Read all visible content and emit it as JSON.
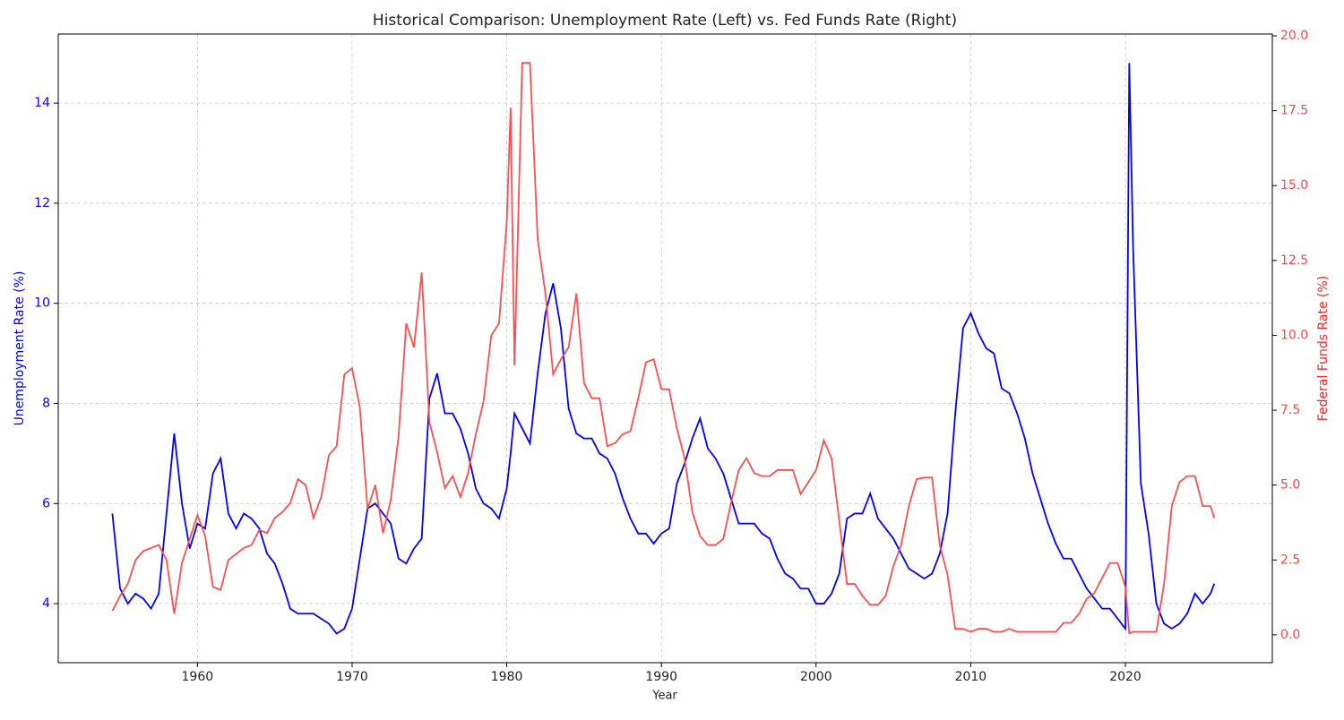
{
  "chart_data": {
    "type": "line",
    "title": "Historical Comparison: Unemployment Rate (Left) vs. Fed Funds Rate (Right)",
    "x_label": "Year",
    "y_label": "Unemployment Rate (%)",
    "y2_label": "Federal Funds Rate (%)",
    "x": [
      1954.5,
      1955.0,
      1955.5,
      1956.0,
      1956.5,
      1957.0,
      1957.5,
      1958.0,
      1958.5,
      1959.0,
      1959.5,
      1960.0,
      1960.5,
      1961.0,
      1961.5,
      1962.0,
      1962.5,
      1963.0,
      1963.5,
      1964.0,
      1964.5,
      1965.0,
      1965.5,
      1966.0,
      1966.5,
      1967.0,
      1967.5,
      1968.0,
      1968.5,
      1969.0,
      1969.5,
      1970.0,
      1970.5,
      1971.0,
      1971.5,
      1972.0,
      1972.5,
      1973.0,
      1973.5,
      1974.0,
      1974.5,
      1975.0,
      1975.5,
      1976.0,
      1976.5,
      1977.0,
      1977.5,
      1978.0,
      1978.5,
      1979.0,
      1979.5,
      1980.0,
      1980.25,
      1980.5,
      1981.0,
      1981.5,
      1982.0,
      1982.5,
      1983.0,
      1983.5,
      1984.0,
      1984.5,
      1985.0,
      1985.5,
      1986.0,
      1986.5,
      1987.0,
      1987.5,
      1988.0,
      1988.5,
      1989.0,
      1989.5,
      1990.0,
      1990.5,
      1991.0,
      1991.5,
      1992.0,
      1992.5,
      1993.0,
      1993.5,
      1994.0,
      1994.5,
      1995.0,
      1995.5,
      1996.0,
      1996.5,
      1997.0,
      1997.5,
      1998.0,
      1998.5,
      1999.0,
      1999.5,
      2000.0,
      2000.5,
      2001.0,
      2001.5,
      2002.0,
      2002.5,
      2003.0,
      2003.5,
      2004.0,
      2004.5,
      2005.0,
      2005.5,
      2006.0,
      2006.5,
      2007.0,
      2007.5,
      2008.0,
      2008.5,
      2009.0,
      2009.5,
      2010.0,
      2010.5,
      2011.0,
      2011.5,
      2012.0,
      2012.5,
      2013.0,
      2013.5,
      2014.0,
      2014.5,
      2015.0,
      2015.5,
      2016.0,
      2016.5,
      2017.0,
      2017.5,
      2018.0,
      2018.5,
      2019.0,
      2019.5,
      2020.0,
      2020.25,
      2020.5,
      2021.0,
      2021.5,
      2022.0,
      2022.5,
      2023.0,
      2023.5,
      2024.0,
      2024.5,
      2025.0,
      2025.5,
      2025.75
    ],
    "series": [
      {
        "name": "Unemployment Rate (%)",
        "color": "#0000ff",
        "axis": "y",
        "values": [
          5.8,
          4.3,
          4.0,
          4.2,
          4.1,
          3.9,
          4.2,
          5.8,
          7.4,
          6.0,
          5.1,
          5.6,
          5.5,
          6.6,
          6.9,
          5.8,
          5.5,
          5.8,
          5.7,
          5.5,
          5.0,
          4.8,
          4.4,
          3.9,
          3.8,
          3.8,
          3.8,
          3.7,
          3.6,
          3.4,
          3.5,
          3.9,
          4.9,
          5.9,
          6.0,
          5.8,
          5.6,
          4.9,
          4.8,
          5.1,
          5.3,
          8.1,
          8.6,
          7.8,
          7.8,
          7.5,
          7.0,
          6.3,
          6.0,
          5.9,
          5.7,
          6.3,
          7.0,
          7.8,
          7.5,
          7.2,
          8.6,
          9.8,
          10.4,
          9.5,
          7.9,
          7.4,
          7.3,
          7.3,
          7.0,
          6.9,
          6.6,
          6.1,
          5.7,
          5.4,
          5.4,
          5.2,
          5.4,
          5.5,
          6.4,
          6.8,
          7.3,
          7.7,
          7.1,
          6.9,
          6.6,
          6.1,
          5.6,
          5.6,
          5.6,
          5.4,
          5.3,
          4.9,
          4.6,
          4.5,
          4.3,
          4.3,
          4.0,
          4.0,
          4.2,
          4.6,
          5.7,
          5.8,
          5.8,
          6.2,
          5.7,
          5.5,
          5.3,
          5.0,
          4.7,
          4.6,
          4.5,
          4.6,
          5.0,
          5.8,
          7.8,
          9.5,
          9.8,
          9.4,
          9.1,
          9.0,
          8.3,
          8.2,
          7.8,
          7.3,
          6.6,
          6.1,
          5.6,
          5.2,
          4.9,
          4.9,
          4.6,
          4.3,
          4.1,
          3.9,
          3.9,
          3.7,
          3.5,
          14.8,
          11.1,
          6.4,
          5.4,
          4.0,
          3.6,
          3.5,
          3.6,
          3.8,
          4.2,
          4.0,
          4.2,
          4.4
        ]
      },
      {
        "name": "Federal Funds Rate (%)",
        "color": "#ff4444",
        "axis": "y2",
        "values": [
          0.8,
          1.3,
          1.7,
          2.5,
          2.8,
          2.9,
          3.0,
          2.5,
          0.7,
          2.4,
          3.2,
          4.0,
          3.3,
          1.6,
          1.5,
          2.5,
          2.7,
          2.9,
          3.0,
          3.5,
          3.4,
          3.9,
          4.1,
          4.4,
          5.2,
          5.0,
          3.9,
          4.6,
          6.0,
          6.3,
          8.7,
          8.9,
          7.6,
          4.2,
          5.0,
          3.4,
          4.5,
          6.6,
          10.4,
          9.6,
          12.1,
          7.1,
          6.1,
          4.9,
          5.3,
          4.6,
          5.4,
          6.7,
          7.8,
          10.0,
          10.4,
          13.8,
          17.6,
          9.0,
          19.1,
          19.1,
          13.2,
          11.4,
          8.7,
          9.2,
          9.6,
          11.4,
          8.4,
          7.9,
          7.9,
          6.3,
          6.4,
          6.7,
          6.8,
          7.9,
          9.1,
          9.2,
          8.2,
          8.2,
          6.9,
          5.9,
          4.1,
          3.3,
          3.0,
          3.0,
          3.2,
          4.4,
          5.5,
          5.9,
          5.4,
          5.3,
          5.3,
          5.5,
          5.5,
          5.5,
          4.7,
          5.1,
          5.5,
          6.5,
          5.9,
          3.8,
          1.7,
          1.7,
          1.3,
          1.0,
          1.0,
          1.3,
          2.3,
          3.0,
          4.3,
          5.2,
          5.25,
          5.25,
          3.0,
          2.0,
          0.2,
          0.2,
          0.1,
          0.2,
          0.2,
          0.1,
          0.1,
          0.2,
          0.1,
          0.1,
          0.1,
          0.1,
          0.1,
          0.1,
          0.4,
          0.4,
          0.7,
          1.2,
          1.4,
          1.9,
          2.4,
          2.4,
          1.6,
          0.05,
          0.1,
          0.1,
          0.1,
          0.1,
          1.7,
          4.3,
          5.1,
          5.3,
          5.3,
          4.3,
          4.3,
          3.9
        ]
      }
    ],
    "xlim": [
      1951.0,
      2029.5
    ],
    "xticks": [
      1960,
      1970,
      1980,
      1990,
      2000,
      2010,
      2020
    ],
    "ylim": [
      2.82,
      15.38
    ],
    "yticks": [
      4,
      6,
      8,
      10,
      12,
      14
    ],
    "y2lim": [
      -0.93,
      20.06
    ],
    "y2ticks": [
      {
        "value": 0,
        "label": "0.0"
      },
      {
        "value": 2.5,
        "label": "2.5"
      },
      {
        "value": 5,
        "label": "5.0"
      },
      {
        "value": 7.5,
        "label": "7.5"
      },
      {
        "value": 10,
        "label": "10.0"
      },
      {
        "value": 12.5,
        "label": "12.5"
      },
      {
        "value": 15,
        "label": "15.0"
      },
      {
        "value": 17.5,
        "label": "17.5"
      },
      {
        "value": 20,
        "label": "20.0"
      }
    ],
    "grid": true
  }
}
